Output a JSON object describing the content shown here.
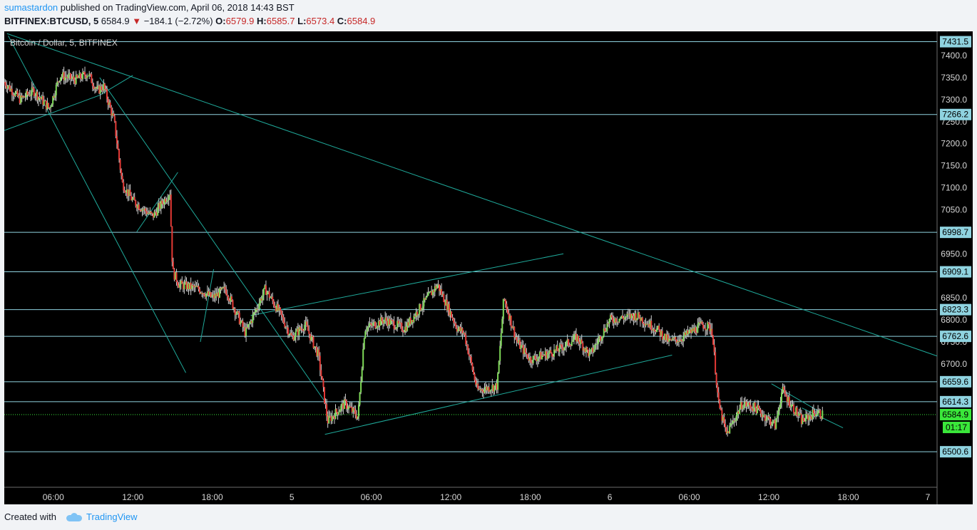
{
  "header": {
    "author": "sumastardon",
    "published_text": "published on TradingView.com, April 06, 2018 14:43 BST",
    "symbol": "BITFINEX:BTCUSD, 5",
    "last": "6584.9",
    "change": "−184.1 (−2.72%)",
    "ohlc": {
      "o_label": "O:",
      "o": "6579.9",
      "h_label": "H:",
      "h": "6585.7",
      "l_label": "L:",
      "l": "6573.4",
      "c_label": "C:",
      "c": "6584.9"
    }
  },
  "footer": {
    "created_with": "Created with",
    "brand": "TradingView",
    "logo_icon": "tradingview-cloud-icon"
  },
  "chart_data": {
    "type": "candlestick",
    "title": "Bitcoin / Dollar, 5, BITFINEX",
    "ylim": [
      6420,
      7455
    ],
    "y_ticks": [
      7400,
      7350,
      7300,
      7250,
      7200,
      7150,
      7100,
      7050,
      6950,
      6850,
      6800,
      6750,
      6700
    ],
    "y_tick_labels": [
      "7400.0",
      "7350.0",
      "7300.0",
      "7250.0",
      "7200.0",
      "7150.0",
      "7100.0",
      "7050.0",
      "6950.0",
      "6850.0",
      "6800.0",
      "6750.0",
      "6700.0"
    ],
    "x_tick_labels": [
      {
        "hour": 6,
        "label": "06:00"
      },
      {
        "hour": 12,
        "label": "12:00"
      },
      {
        "hour": 18,
        "label": "18:00"
      },
      {
        "hour": 24,
        "label": "5"
      },
      {
        "hour": 30,
        "label": "06:00"
      },
      {
        "hour": 36,
        "label": "12:00"
      },
      {
        "hour": 42,
        "label": "18:00"
      },
      {
        "hour": 48,
        "label": "6"
      },
      {
        "hour": 54,
        "label": "06:00"
      },
      {
        "hour": 60,
        "label": "12:00"
      },
      {
        "hour": 66,
        "label": "18:00"
      },
      {
        "hour": 72,
        "label": "7"
      }
    ],
    "x_range_hours": [
      2.3,
      72.7
    ],
    "horizontal_levels": [
      {
        "value": 7431.5,
        "label": "7431.5"
      },
      {
        "value": 7266.2,
        "label": "7266.2"
      },
      {
        "value": 6998.7,
        "label": "6998.7"
      },
      {
        "value": 6909.1,
        "label": "6909.1"
      },
      {
        "value": 6823.3,
        "label": "6823.3"
      },
      {
        "value": 6762.6,
        "label": "6762.6"
      },
      {
        "value": 6659.6,
        "label": "6659.6"
      },
      {
        "value": 6614.3,
        "label": "6614.3"
      },
      {
        "value": 6500.6,
        "label": "6500.6"
      }
    ],
    "last_price": {
      "value": 6584.9,
      "label": "6584.9",
      "countdown": "01:17"
    },
    "price_path": [
      {
        "t": 2.3,
        "p": 7340
      },
      {
        "t": 3.5,
        "p": 7300
      },
      {
        "t": 4.5,
        "p": 7320
      },
      {
        "t": 5.7,
        "p": 7280
      },
      {
        "t": 6.5,
        "p": 7355
      },
      {
        "t": 7.7,
        "p": 7345
      },
      {
        "t": 8.6,
        "p": 7360
      },
      {
        "t": 9.3,
        "p": 7320
      },
      {
        "t": 9.8,
        "p": 7330
      },
      {
        "t": 10.6,
        "p": 7250
      },
      {
        "t": 11.2,
        "p": 7110
      },
      {
        "t": 12.0,
        "p": 7070
      },
      {
        "t": 13.5,
        "p": 7035
      },
      {
        "t": 14.8,
        "p": 7090
      },
      {
        "t": 15.0,
        "p": 6910
      },
      {
        "t": 15.5,
        "p": 6880
      },
      {
        "t": 17.0,
        "p": 6870
      },
      {
        "t": 18.0,
        "p": 6850
      },
      {
        "t": 19.0,
        "p": 6870
      },
      {
        "t": 20.5,
        "p": 6770
      },
      {
        "t": 22.0,
        "p": 6870
      },
      {
        "t": 23.0,
        "p": 6820
      },
      {
        "t": 24.0,
        "p": 6760
      },
      {
        "t": 25.0,
        "p": 6790
      },
      {
        "t": 26.0,
        "p": 6720
      },
      {
        "t": 26.7,
        "p": 6570
      },
      {
        "t": 28.0,
        "p": 6610
      },
      {
        "t": 29.0,
        "p": 6580
      },
      {
        "t": 29.5,
        "p": 6780
      },
      {
        "t": 31.0,
        "p": 6800
      },
      {
        "t": 32.5,
        "p": 6780
      },
      {
        "t": 34.0,
        "p": 6840
      },
      {
        "t": 35.0,
        "p": 6880
      },
      {
        "t": 36.5,
        "p": 6780
      },
      {
        "t": 37.0,
        "p": 6770
      },
      {
        "t": 38.0,
        "p": 6640
      },
      {
        "t": 39.5,
        "p": 6650
      },
      {
        "t": 40.0,
        "p": 6850
      },
      {
        "t": 41.0,
        "p": 6750
      },
      {
        "t": 42.0,
        "p": 6710
      },
      {
        "t": 44.0,
        "p": 6730
      },
      {
        "t": 45.5,
        "p": 6760
      },
      {
        "t": 46.5,
        "p": 6720
      },
      {
        "t": 48.0,
        "p": 6800
      },
      {
        "t": 50.0,
        "p": 6810
      },
      {
        "t": 51.5,
        "p": 6780
      },
      {
        "t": 52.5,
        "p": 6750
      },
      {
        "t": 53.5,
        "p": 6760
      },
      {
        "t": 55.0,
        "p": 6790
      },
      {
        "t": 55.7,
        "p": 6780
      },
      {
        "t": 56.2,
        "p": 6610
      },
      {
        "t": 56.8,
        "p": 6540
      },
      {
        "t": 58.0,
        "p": 6610
      },
      {
        "t": 59.0,
        "p": 6600
      },
      {
        "t": 60.5,
        "p": 6560
      },
      {
        "t": 61.0,
        "p": 6640
      },
      {
        "t": 62.5,
        "p": 6570
      },
      {
        "t": 63.5,
        "p": 6590
      },
      {
        "t": 64.1,
        "p": 6585
      }
    ],
    "trend_lines": [
      {
        "from": {
          "t": 2.5,
          "p": 7450
        },
        "to": {
          "t": 72.7,
          "p": 6718
        }
      },
      {
        "from": {
          "t": 2.3,
          "p": 7230
        },
        "to": {
          "t": 9.5,
          "p": 7310
        }
      },
      {
        "from": {
          "t": 9.5,
          "p": 7310
        },
        "to": {
          "t": 12.0,
          "p": 7355
        }
      },
      {
        "from": {
          "t": 2.6,
          "p": 7445
        },
        "to": {
          "t": 16.0,
          "p": 6680
        }
      },
      {
        "from": {
          "t": 9.5,
          "p": 7350
        },
        "to": {
          "t": 26.6,
          "p": 6610
        }
      },
      {
        "from": {
          "t": 12.3,
          "p": 7000
        },
        "to": {
          "t": 15.4,
          "p": 7135
        }
      },
      {
        "from": {
          "t": 17.1,
          "p": 6750
        },
        "to": {
          "t": 18.1,
          "p": 6915
        }
      },
      {
        "from": {
          "t": 20.9,
          "p": 6810
        },
        "to": {
          "t": 44.5,
          "p": 6950
        }
      },
      {
        "from": {
          "t": 26.5,
          "p": 6540
        },
        "to": {
          "t": 52.7,
          "p": 6720
        }
      },
      {
        "from": {
          "t": 60.2,
          "p": 6655
        },
        "to": {
          "t": 63.8,
          "p": 6592
        }
      },
      {
        "from": {
          "t": 62.5,
          "p": 6600
        },
        "to": {
          "t": 65.6,
          "p": 6555
        }
      }
    ]
  },
  "colors": {
    "background": "#000000",
    "level_line": "#8fd3e0",
    "level_label_bg": "#8fd3e0",
    "trend_line": "#1fa99a",
    "up_candle": "#7ed957",
    "down_candle": "#e53935",
    "wick": "#cfcfcf",
    "last_price_bg": "#3ae73a",
    "axis_text": "#d6d6d6",
    "title_text": "#d6d6d6"
  }
}
